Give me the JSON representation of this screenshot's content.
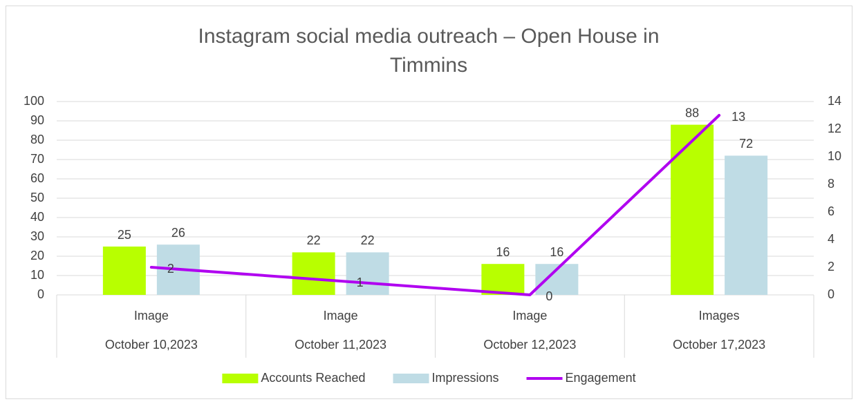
{
  "chart_data": {
    "type": "bar",
    "title": "Instagram social media outreach – Open House in Timmins",
    "categories": [
      "Image",
      "Image",
      "Image",
      "Images"
    ],
    "category_groups": [
      "October 10,2023",
      "October 11,2023",
      "October 12,2023",
      "October 17,2023"
    ],
    "series": [
      {
        "name": "Accounts Reached",
        "type": "bar",
        "color": "#b8ff00",
        "values": [
          25,
          22,
          16,
          88
        ]
      },
      {
        "name": "Impressions",
        "type": "bar",
        "color": "#bfdce5",
        "values": [
          26,
          22,
          16,
          72
        ]
      },
      {
        "name": "Engagement",
        "type": "line",
        "axis": "y2",
        "color": "#b000f0",
        "values": [
          2,
          1,
          0,
          13
        ]
      }
    ],
    "ylim": [
      0,
      100
    ],
    "yticks": [
      0,
      10,
      20,
      30,
      40,
      50,
      60,
      70,
      80,
      90,
      100
    ],
    "y2lim": [
      0,
      14
    ],
    "y2ticks": [
      0,
      2,
      4,
      6,
      8,
      10,
      12,
      14
    ],
    "grid": true,
    "legend": "bottom"
  }
}
